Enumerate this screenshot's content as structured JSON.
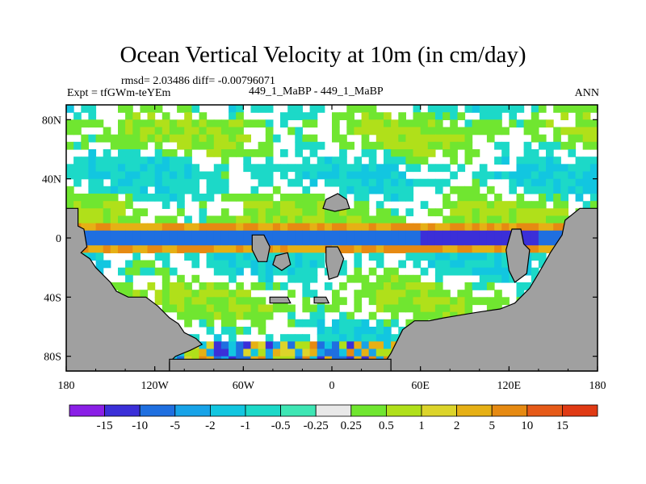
{
  "chart_data": {
    "type": "heatmap",
    "title": "Ocean Vertical Velocity at 10m (in cm/day)",
    "stats_text": "rmsd= 2.03486  diff= -0.00796071",
    "experiment_label": "Expt = tfGWm-teYEm",
    "case_label": "449_1_MaBP - 449_1_MaBP",
    "season_label": "ANN",
    "x_axis": {
      "range": [
        -180,
        180
      ],
      "ticks": [
        -180,
        -120,
        -60,
        0,
        60,
        120,
        180
      ],
      "tick_labels": [
        "180",
        "120W",
        "60W",
        "0",
        "60E",
        "120E",
        "180"
      ]
    },
    "y_axis": {
      "range": [
        -90,
        90
      ],
      "ticks": [
        80,
        40,
        0,
        -40,
        -80
      ],
      "tick_labels": [
        "80N",
        "40N",
        "0",
        "40S",
        "80S"
      ]
    },
    "colorbar": {
      "levels": [
        "-15",
        "-10",
        "-5",
        "-2",
        "-1",
        "-0.5",
        "-0.25",
        "0.25",
        "0.5",
        "1",
        "2",
        "5",
        "10",
        "15"
      ],
      "colors": [
        "#8a1fe6",
        "#3b2fd8",
        "#1f6fe0",
        "#17a3e8",
        "#12c6e0",
        "#1cd9c8",
        "#3ee6b4",
        "#e8e8e8",
        "#70e630",
        "#b0e01a",
        "#dcd42a",
        "#e6b015",
        "#e68a12",
        "#e65a18",
        "#e03a14"
      ]
    },
    "land_color": "#a0a0a0"
  }
}
